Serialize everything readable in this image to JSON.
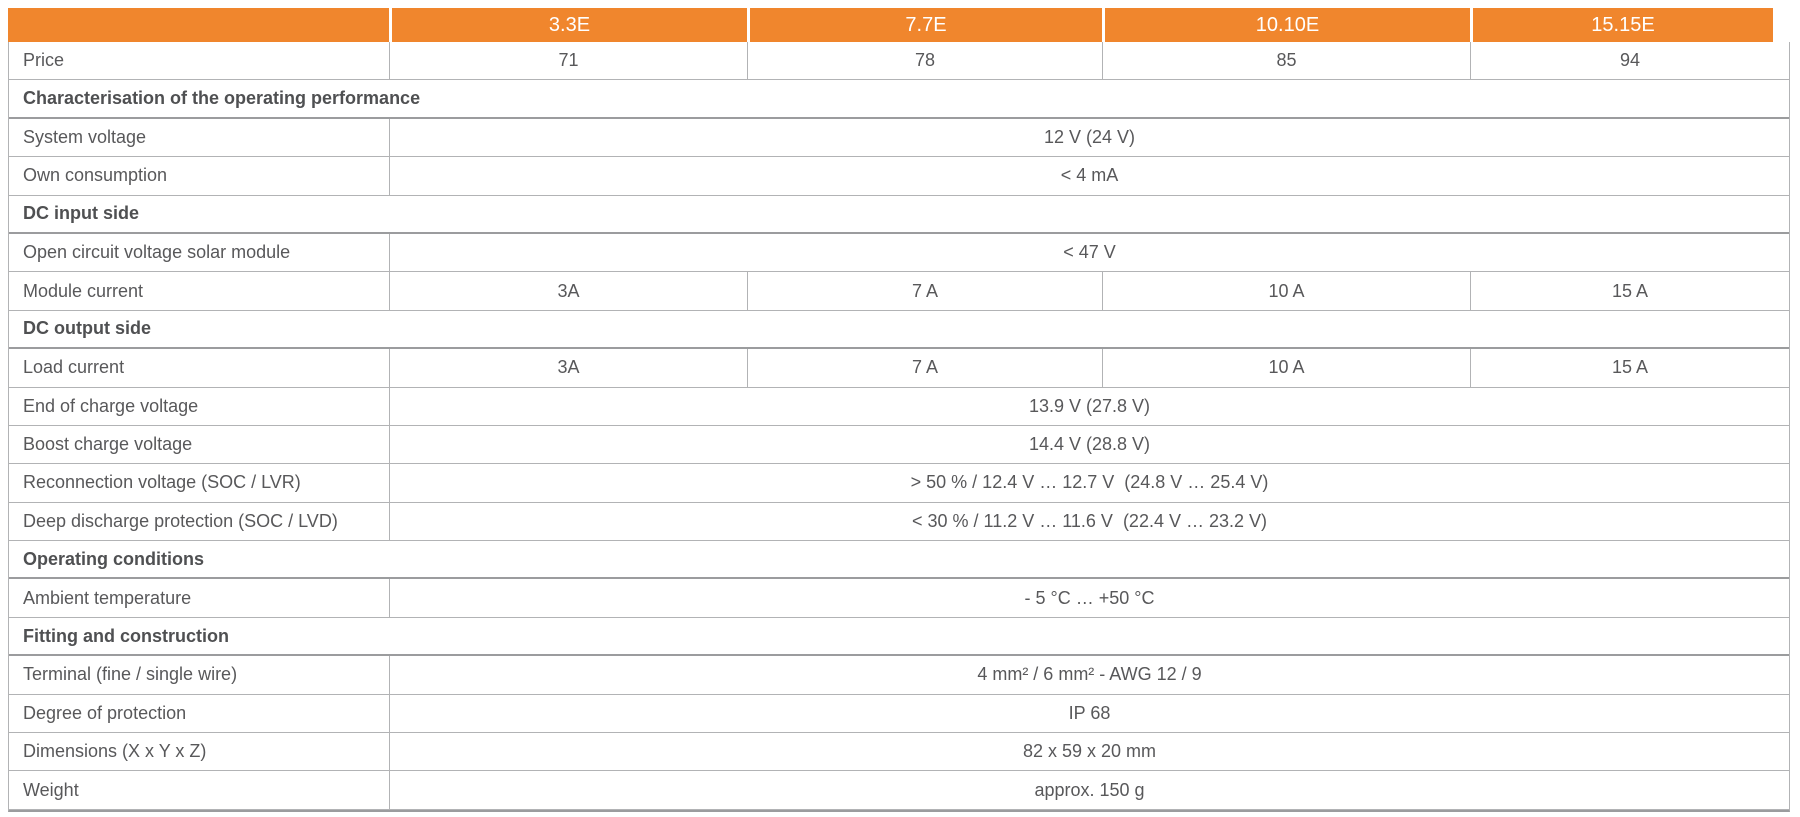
{
  "colors": {
    "accent_orange": "#F0862D",
    "header_text": "#FFFFFF",
    "body_text": "#58585A",
    "grid_line": "#B2B3B5"
  },
  "header": {
    "columns": [
      "3.3E",
      "7.7E",
      "10.10E",
      "15.15E"
    ]
  },
  "rows": [
    {
      "type": "values",
      "label": "Price",
      "values": [
        "71",
        "78",
        "85",
        "94"
      ]
    },
    {
      "type": "section",
      "label": "Characterisation of the operating performance"
    },
    {
      "type": "merged",
      "label": "System voltage",
      "value": "12 V (24 V)"
    },
    {
      "type": "merged",
      "label": "Own consumption",
      "value": "< 4 mA"
    },
    {
      "type": "section",
      "label": "DC input side"
    },
    {
      "type": "merged",
      "label": "Open circuit voltage solar module",
      "value": "< 47 V"
    },
    {
      "type": "values",
      "label": "Module current",
      "values": [
        "3A",
        "7 A",
        "10 A",
        "15 A"
      ]
    },
    {
      "type": "section",
      "label": "DC output side"
    },
    {
      "type": "values",
      "label": "Load current",
      "values": [
        "3A",
        "7 A",
        "10 A",
        "15 A"
      ]
    },
    {
      "type": "merged",
      "label": "End of charge voltage",
      "value": "13.9 V (27.8 V)"
    },
    {
      "type": "merged",
      "label": "Boost charge voltage",
      "value": "14.4 V (28.8 V)"
    },
    {
      "type": "merged",
      "label": "Reconnection voltage (SOC / LVR)",
      "value": "> 50 % / 12.4 V … 12.7 V  (24.8 V … 25.4 V)"
    },
    {
      "type": "merged",
      "label": "Deep discharge protection (SOC / LVD)",
      "value": "< 30 % / 11.2 V … 11.6 V  (22.4 V … 23.2 V)"
    },
    {
      "type": "section",
      "label": "Operating conditions"
    },
    {
      "type": "merged",
      "label": "Ambient temperature",
      "value": "- 5 °C … +50 °C"
    },
    {
      "type": "section",
      "label": "Fitting and construction"
    },
    {
      "type": "merged",
      "label": "Terminal (fine / single wire)",
      "value": "4 mm² / 6 mm² - AWG 12 / 9"
    },
    {
      "type": "merged",
      "label": "Degree of protection",
      "value": "IP 68"
    },
    {
      "type": "merged",
      "label": "Dimensions (X x Y x Z)",
      "value": "82 x 59 x 20 mm"
    },
    {
      "type": "merged",
      "label": "Weight",
      "value": "approx. 150 g"
    }
  ]
}
